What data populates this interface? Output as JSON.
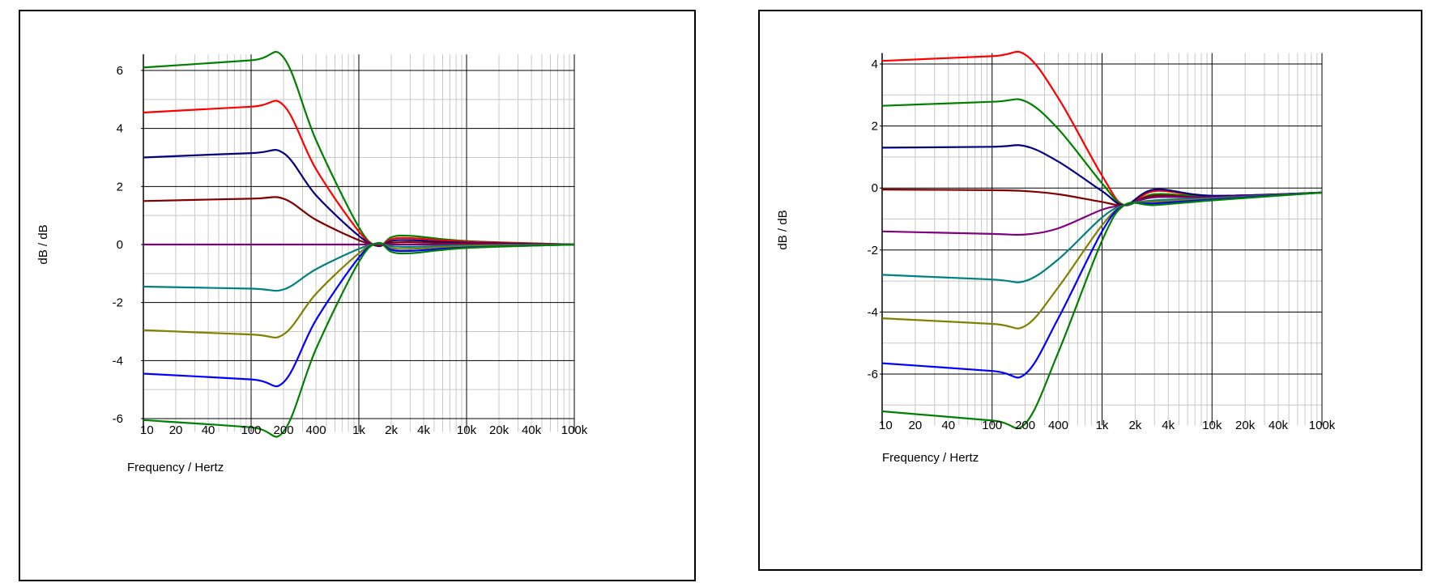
{
  "chart_data": [
    {
      "type": "line",
      "xscale": "log",
      "xlabel": "Frequency / Hertz",
      "ylabel": "dB / dB",
      "xlim": [
        10,
        100000
      ],
      "ylim": [
        -6.4,
        6.5
      ],
      "x_tick_values": [
        10,
        20,
        40,
        100,
        200,
        400,
        1000,
        2000,
        4000,
        10000,
        20000,
        40000,
        100000
      ],
      "x_tick_labels": [
        "10",
        "20",
        "40",
        "100",
        "200",
        "400",
        "1k",
        "2k",
        "4k",
        "10k",
        "20k",
        "40k",
        "100k"
      ],
      "y_ticks": [
        6,
        4,
        2,
        0,
        -2,
        -4,
        -6
      ],
      "grid": true,
      "x": [
        10,
        100,
        200,
        400,
        1000,
        1500,
        2000,
        3000,
        10000,
        100000
      ],
      "series": [
        {
          "color": "#008000",
          "values": [
            6.1,
            6.35,
            6.45,
            3.6,
            0.6,
            -0.05,
            0.25,
            0.3,
            0.12,
            0.0
          ]
        },
        {
          "color": "#ff0000",
          "values": [
            4.55,
            4.75,
            4.8,
            2.6,
            0.45,
            -0.05,
            0.18,
            0.22,
            0.1,
            0.0
          ]
        },
        {
          "color": "#000080",
          "values": [
            3.0,
            3.15,
            3.15,
            1.7,
            0.3,
            -0.05,
            0.12,
            0.15,
            0.06,
            0.0
          ]
        },
        {
          "color": "#800000",
          "values": [
            1.5,
            1.58,
            1.58,
            0.85,
            0.15,
            -0.03,
            0.06,
            0.08,
            0.03,
            0.0
          ]
        },
        {
          "color": "#800080",
          "values": [
            0.0,
            0.0,
            0.0,
            0.0,
            0.0,
            0.0,
            0.0,
            0.0,
            0.0,
            0.0
          ]
        },
        {
          "color": "#008080",
          "values": [
            -1.45,
            -1.52,
            -1.55,
            -0.85,
            -0.15,
            0.03,
            -0.06,
            -0.08,
            -0.03,
            0.0
          ]
        },
        {
          "color": "#808000",
          "values": [
            -2.95,
            -3.1,
            -3.1,
            -1.7,
            -0.3,
            0.05,
            -0.12,
            -0.15,
            -0.06,
            0.0
          ]
        },
        {
          "color": "#0000ff",
          "values": [
            -4.45,
            -4.65,
            -4.75,
            -2.6,
            -0.45,
            0.05,
            -0.18,
            -0.22,
            -0.1,
            0.0
          ]
        },
        {
          "color": "#008000",
          "values": [
            -6.05,
            -6.3,
            -6.45,
            -3.6,
            -0.6,
            0.05,
            -0.25,
            -0.3,
            -0.12,
            0.0
          ]
        }
      ]
    },
    {
      "type": "line",
      "xscale": "log",
      "xlabel": "Frequency / Hertz",
      "ylabel": "dB / dB",
      "xlim": [
        10,
        100000
      ],
      "ylim": [
        -7.6,
        4.3
      ],
      "x_tick_values": [
        10,
        20,
        40,
        100,
        200,
        400,
        1000,
        2000,
        4000,
        10000,
        20000,
        40000,
        100000
      ],
      "x_tick_labels": [
        "10",
        "20",
        "40",
        "100",
        "200",
        "400",
        "1k",
        "2k",
        "4k",
        "10k",
        "20k",
        "40k",
        "100k"
      ],
      "y_ticks": [
        4,
        2,
        0,
        -2,
        -4,
        -6
      ],
      "grid": true,
      "x": [
        10,
        100,
        200,
        400,
        1000,
        1600,
        3000,
        10000,
        100000
      ],
      "series": [
        {
          "color": "#ff0000",
          "values": [
            4.1,
            4.25,
            4.3,
            2.9,
            0.4,
            -0.55,
            -0.1,
            -0.25,
            -0.15
          ]
        },
        {
          "color": "#008000",
          "values": [
            2.65,
            2.78,
            2.8,
            1.9,
            0.15,
            -0.55,
            -0.2,
            -0.27,
            -0.15
          ]
        },
        {
          "color": "#000080",
          "values": [
            1.3,
            1.33,
            1.35,
            0.85,
            -0.1,
            -0.55,
            -0.05,
            -0.25,
            -0.15
          ]
        },
        {
          "color": "#800000",
          "values": [
            -0.05,
            -0.07,
            -0.1,
            -0.2,
            -0.45,
            -0.55,
            -0.25,
            -0.3,
            -0.15
          ]
        },
        {
          "color": "#800080",
          "values": [
            -1.4,
            -1.48,
            -1.5,
            -1.3,
            -0.7,
            -0.55,
            -0.3,
            -0.3,
            -0.15
          ]
        },
        {
          "color": "#008080",
          "values": [
            -2.8,
            -2.95,
            -3.0,
            -2.3,
            -0.95,
            -0.55,
            -0.4,
            -0.33,
            -0.15
          ]
        },
        {
          "color": "#808000",
          "values": [
            -4.2,
            -4.38,
            -4.45,
            -3.2,
            -1.2,
            -0.55,
            -0.45,
            -0.35,
            -0.15
          ]
        },
        {
          "color": "#0000ff",
          "values": [
            -5.65,
            -5.9,
            -6.0,
            -4.2,
            -1.4,
            -0.55,
            -0.5,
            -0.37,
            -0.15
          ]
        },
        {
          "color": "#008000",
          "values": [
            -7.2,
            -7.5,
            -7.6,
            -5.3,
            -1.7,
            -0.55,
            -0.55,
            -0.4,
            -0.15
          ]
        }
      ]
    }
  ]
}
